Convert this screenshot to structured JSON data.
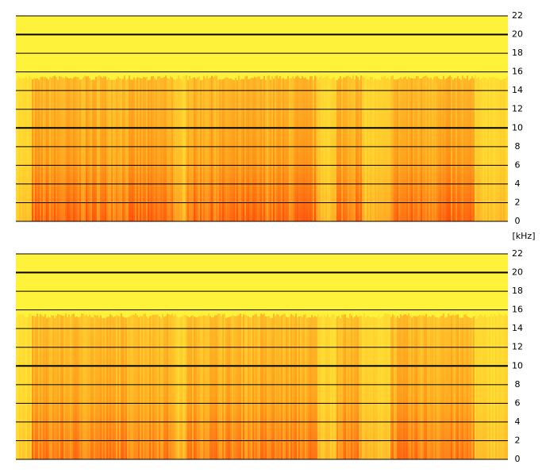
{
  "chart_data": [
    {
      "type": "spectrogram",
      "ylim": [
        0,
        22
      ],
      "yticks": [
        0,
        2,
        4,
        6,
        8,
        10,
        12,
        14,
        16,
        18,
        20,
        22
      ],
      "major_ticks": [
        10,
        20
      ],
      "grid": true,
      "y_label": "[kHz]"
    },
    {
      "type": "spectrogram",
      "ylim": [
        0,
        22
      ],
      "yticks": [
        0,
        2,
        4,
        6,
        8,
        10,
        12,
        14,
        16,
        18,
        20,
        22
      ],
      "major_ticks": [
        10,
        20
      ],
      "grid": true
    }
  ]
}
